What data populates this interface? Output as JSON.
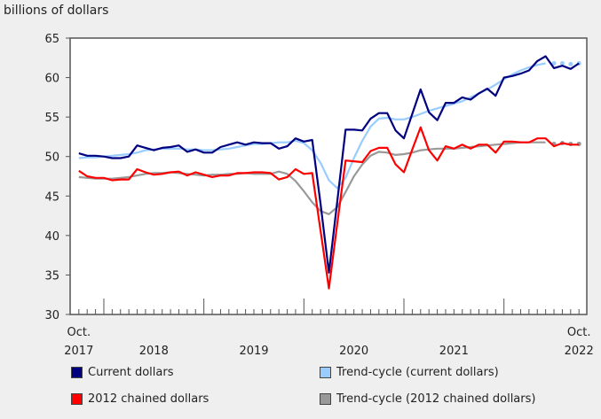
{
  "chart_data": {
    "type": "line",
    "ylabel": "billions of dollars",
    "ylim": [
      30,
      65
    ],
    "yticks": [
      "30",
      "35",
      "40",
      "45",
      "50",
      "55",
      "60",
      "65"
    ],
    "x_start": "2017-10",
    "x_end": "2022-10",
    "xtick_labels": [
      {
        "month": "2017-10",
        "lines": [
          "Oct.",
          "2017"
        ]
      },
      {
        "month": "2018-07",
        "lines": [
          "",
          "2018"
        ]
      },
      {
        "month": "2019-07",
        "lines": [
          "",
          "2019"
        ]
      },
      {
        "month": "2020-07",
        "lines": [
          "",
          "2020"
        ]
      },
      {
        "month": "2021-07",
        "lines": [
          "",
          "2021"
        ]
      },
      {
        "month": "2022-10",
        "lines": [
          "Oct.",
          "2022"
        ]
      }
    ],
    "grid": false,
    "legend_position": "bottom",
    "series": [
      {
        "name": "Current dollars",
        "color": "#000080",
        "style": "solid",
        "values": [
          50.4,
          50.1,
          50.1,
          50.0,
          49.8,
          49.8,
          50.0,
          51.4,
          51.1,
          50.8,
          51.1,
          51.2,
          51.4,
          50.6,
          50.9,
          50.5,
          50.5,
          51.2,
          51.5,
          51.8,
          51.5,
          51.8,
          51.7,
          51.7,
          51.0,
          51.3,
          52.3,
          51.9,
          52.1,
          44.0,
          35.3,
          44.3,
          53.4,
          53.4,
          53.3,
          54.8,
          55.5,
          55.5,
          53.3,
          52.3,
          55.4,
          58.5,
          55.6,
          54.6,
          56.8,
          56.8,
          57.5,
          57.2,
          58.0,
          58.6,
          57.7,
          60.0,
          60.2,
          60.5,
          60.9,
          62.1,
          62.7,
          61.2,
          61.5,
          61.1,
          61.8
        ]
      },
      {
        "name": "Trend-cycle (current dollars)",
        "color": "#99ccff",
        "style": "solid",
        "dotted_from": "2022-07",
        "values": [
          49.8,
          49.9,
          49.9,
          50.0,
          50.1,
          50.2,
          50.3,
          50.5,
          50.8,
          50.9,
          51.0,
          51.0,
          51.0,
          50.9,
          50.9,
          50.8,
          50.8,
          50.9,
          51.0,
          51.2,
          51.4,
          51.6,
          51.6,
          51.7,
          51.8,
          51.8,
          52.0,
          51.7,
          50.8,
          49.2,
          47.0,
          46.0,
          47.3,
          49.8,
          52.0,
          53.8,
          54.8,
          54.9,
          54.7,
          54.7,
          55.0,
          55.4,
          55.8,
          56.1,
          56.4,
          56.7,
          57.0,
          57.5,
          58.0,
          58.5,
          59.1,
          59.8,
          60.4,
          60.9,
          61.3,
          61.6,
          61.8,
          61.8,
          61.8,
          61.7,
          61.8
        ]
      },
      {
        "name": "2012 chained dollars",
        "color": "#ff0000",
        "style": "solid",
        "values": [
          48.2,
          47.5,
          47.3,
          47.3,
          47.0,
          47.1,
          47.1,
          48.4,
          48.0,
          47.7,
          47.8,
          48.0,
          48.1,
          47.6,
          48.0,
          47.7,
          47.4,
          47.6,
          47.6,
          47.9,
          47.9,
          48.0,
          48.0,
          47.9,
          47.1,
          47.4,
          48.4,
          47.8,
          47.9,
          40.6,
          33.3,
          41.5,
          49.5,
          49.4,
          49.3,
          50.7,
          51.1,
          51.1,
          49.0,
          48.0,
          50.9,
          53.7,
          50.8,
          49.5,
          51.3,
          51.0,
          51.5,
          51.0,
          51.5,
          51.5,
          50.5,
          51.9,
          51.9,
          51.8,
          51.8,
          52.3,
          52.3,
          51.3,
          51.7,
          51.5,
          51.5
        ]
      },
      {
        "name": "Trend-cycle (2012 chained dollars)",
        "color": "#999999",
        "style": "solid",
        "dotted_from": "2022-07",
        "values": [
          47.4,
          47.3,
          47.2,
          47.2,
          47.2,
          47.3,
          47.4,
          47.6,
          47.8,
          47.9,
          47.9,
          48.0,
          47.9,
          47.8,
          47.7,
          47.6,
          47.7,
          47.7,
          47.8,
          47.8,
          47.9,
          47.8,
          47.8,
          47.8,
          48.1,
          47.8,
          46.9,
          45.6,
          44.2,
          43.1,
          42.7,
          43.6,
          45.5,
          47.5,
          49.0,
          50.1,
          50.6,
          50.5,
          50.2,
          50.3,
          50.5,
          50.8,
          50.9,
          51.0,
          51.0,
          51.0,
          51.1,
          51.2,
          51.3,
          51.4,
          51.5,
          51.6,
          51.7,
          51.8,
          51.8,
          51.8,
          51.8,
          51.6,
          51.7,
          51.6,
          51.6
        ]
      }
    ]
  }
}
